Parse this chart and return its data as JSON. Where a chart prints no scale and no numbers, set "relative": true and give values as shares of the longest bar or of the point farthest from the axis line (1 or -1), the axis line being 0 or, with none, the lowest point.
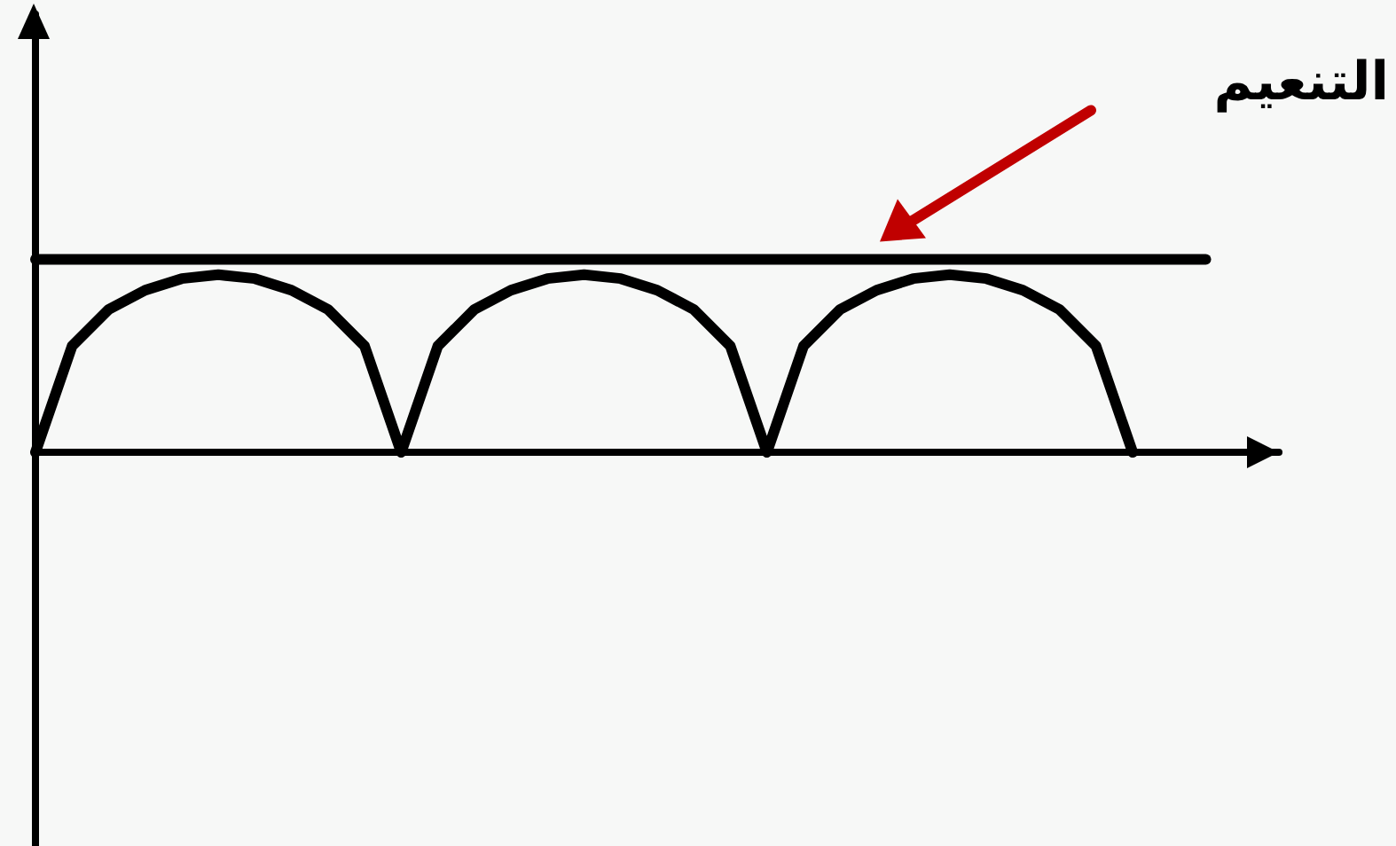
{
  "chart_data": {
    "type": "line",
    "relative": true,
    "categories": [
      null,
      null,
      null,
      null,
      null,
      null,
      null,
      null,
      null,
      null,
      null,
      null,
      null,
      null,
      null,
      null,
      null,
      null,
      null,
      null,
      null,
      null,
      null,
      null,
      null,
      null,
      null,
      null,
      null,
      null,
      null,
      null,
      null,
      null,
      null
    ],
    "series": [
      {
        "color": "#000000",
        "values": [
          0,
          0.55,
          0.74,
          0.84,
          0.9,
          0.92,
          0.9,
          0.84,
          0.74,
          0.55,
          0,
          0.55,
          0.74,
          0.84,
          0.9,
          0.92,
          0.9,
          0.84,
          0.74,
          0.55,
          0,
          0.55,
          0.74,
          0.84,
          0.9,
          0.92,
          0.9,
          0.84,
          0.74,
          0.55,
          0,
          null,
          null,
          null,
          null
        ]
      },
      {
        "color": "#000000",
        "values": [
          1,
          1,
          1,
          1,
          1,
          1,
          1,
          1,
          1,
          1,
          1,
          1,
          1,
          1,
          1,
          1,
          1,
          1,
          1,
          1,
          1,
          1,
          1,
          1,
          1,
          1,
          1,
          1,
          1,
          1,
          1,
          1,
          1,
          null,
          null
        ]
      }
    ],
    "annotations": [
      "التنعيم"
    ]
  }
}
